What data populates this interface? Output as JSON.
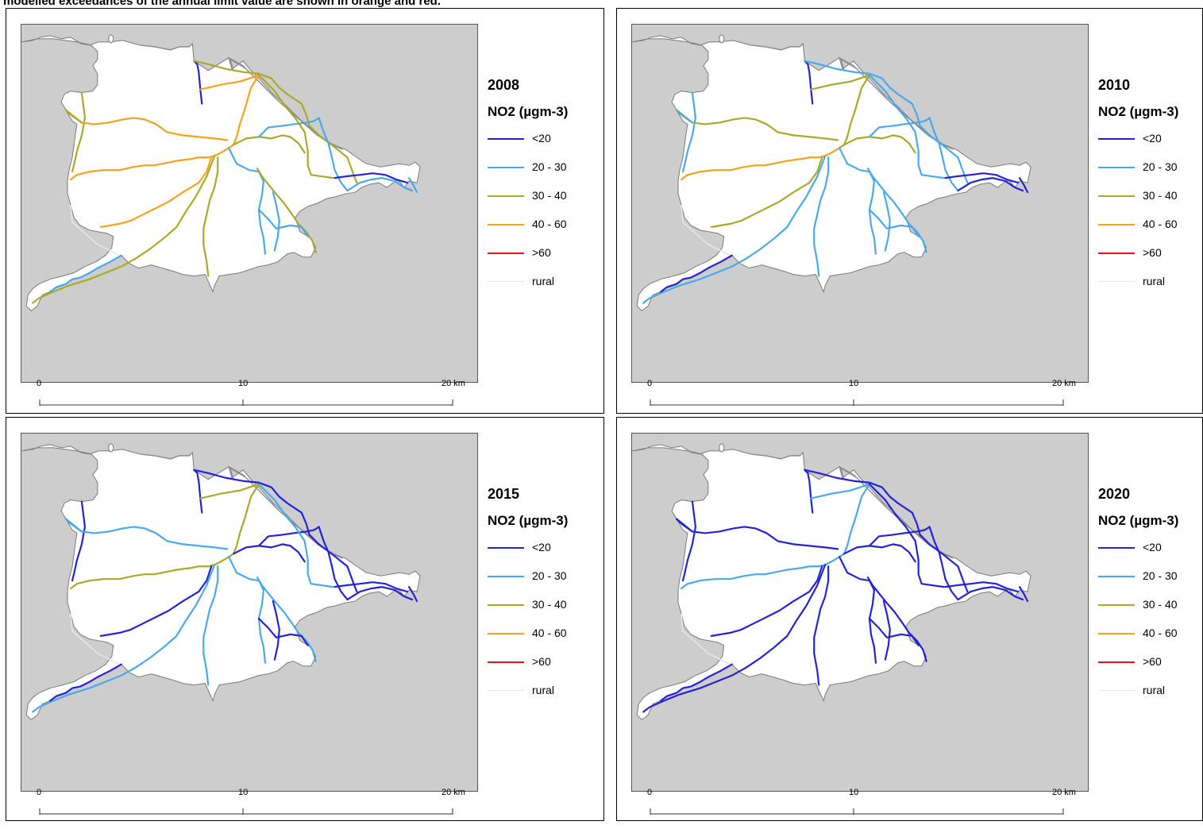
{
  "caption": "modelled exceedances of the annual limit value are shown in orange and red.",
  "colors": {
    "lt20": "#2323d6",
    "c20_30": "#4aa8ec",
    "c30_40": "#a9a92a",
    "c40_60": "#f7a21b",
    "gt60": "#e8141b",
    "rural": "#e6e6e6",
    "land": "#ffffff",
    "sea": "#cdcdcd",
    "coast": "#7a7a7a",
    "river": "#8c8c8c"
  },
  "legend": {
    "unit": "NO2 (µgm-3)",
    "classes": [
      {
        "label": "<20",
        "color": "#2323d6"
      },
      {
        "label": "20 - 30",
        "color": "#4aa8ec"
      },
      {
        "label": "30 - 40",
        "color": "#a9a92a"
      },
      {
        "label": "40 - 60",
        "color": "#f7a21b"
      },
      {
        "label": ">60",
        "color": "#e8141b"
      },
      {
        "label": "rural",
        "color": "#e6e6e6"
      }
    ]
  },
  "scalebar": {
    "ticks": [
      "0",
      "10",
      "20 km"
    ]
  },
  "panels": [
    {
      "year": "2008",
      "roads": {
        "north_spur": "lt20",
        "west_ring": "c30_40",
        "west_arc_a": "c40_60",
        "west_arc_b": "c30_40",
        "north_road": "c30_40",
        "north_road_b": "c40_60",
        "centre_cross": "c40_60",
        "w_radial": "c40_60",
        "sw_radial_a": "c40_60",
        "sw_radial_b": "c30_40",
        "s_radial": "c30_40",
        "coast_sw": "c20_30",
        "e_radial_a": "c20_30",
        "e_radial_b": "c30_40",
        "e_radial_c": "c20_30",
        "ne_road": "c30_40",
        "ne_road_b": "c20_30",
        "east_coast": "lt20",
        "east_link": "c20_30",
        "east_tip": "c20_30",
        "se_radial_a": "c30_40",
        "se_radial_b": "c20_30",
        "se_loop": "c20_30"
      }
    },
    {
      "year": "2010",
      "roads": {
        "north_spur": "lt20",
        "west_ring": "c20_30",
        "west_arc_a": "c30_40",
        "west_arc_b": "c20_30",
        "north_road": "c20_30",
        "north_road_b": "c30_40",
        "centre_cross": "c40_60",
        "w_radial": "c40_60",
        "sw_radial_a": "c30_40",
        "sw_radial_b": "c20_30",
        "s_radial": "c20_30",
        "coast_sw": "lt20",
        "e_radial_a": "c20_30",
        "e_radial_b": "c30_40",
        "e_radial_c": "c20_30",
        "ne_road": "c20_30",
        "ne_road_b": "c20_30",
        "east_coast": "lt20",
        "east_link": "lt20",
        "east_tip": "lt20",
        "se_radial_a": "c20_30",
        "se_radial_b": "c20_30",
        "se_loop": "c20_30"
      }
    },
    {
      "year": "2015",
      "roads": {
        "north_spur": "lt20",
        "west_ring": "lt20",
        "west_arc_a": "c20_30",
        "west_arc_b": "c20_30",
        "north_road": "lt20",
        "north_road_b": "c30_40",
        "centre_cross": "c30_40",
        "w_radial": "c30_40",
        "sw_radial_a": "lt20",
        "sw_radial_b": "c20_30",
        "s_radial": "c20_30",
        "coast_sw": "lt20",
        "e_radial_a": "c20_30",
        "e_radial_b": "lt20",
        "e_radial_c": "lt20",
        "ne_road": "c20_30",
        "ne_road_b": "lt20",
        "east_coast": "lt20",
        "east_link": "lt20",
        "east_tip": "lt20",
        "se_radial_a": "c20_30",
        "se_radial_b": "lt20",
        "se_loop": "lt20"
      }
    },
    {
      "year": "2020",
      "roads": {
        "north_spur": "lt20",
        "west_ring": "lt20",
        "west_arc_a": "lt20",
        "west_arc_b": "lt20",
        "north_road": "lt20",
        "north_road_b": "c20_30",
        "centre_cross": "c20_30",
        "w_radial": "c20_30",
        "sw_radial_a": "lt20",
        "sw_radial_b": "lt20",
        "s_radial": "lt20",
        "coast_sw": "lt20",
        "e_radial_a": "lt20",
        "e_radial_b": "lt20",
        "e_radial_c": "lt20",
        "ne_road": "lt20",
        "ne_road_b": "lt20",
        "east_coast": "lt20",
        "east_link": "lt20",
        "east_tip": "lt20",
        "se_radial_a": "lt20",
        "se_radial_b": "lt20",
        "se_loop": "lt20"
      }
    }
  ]
}
